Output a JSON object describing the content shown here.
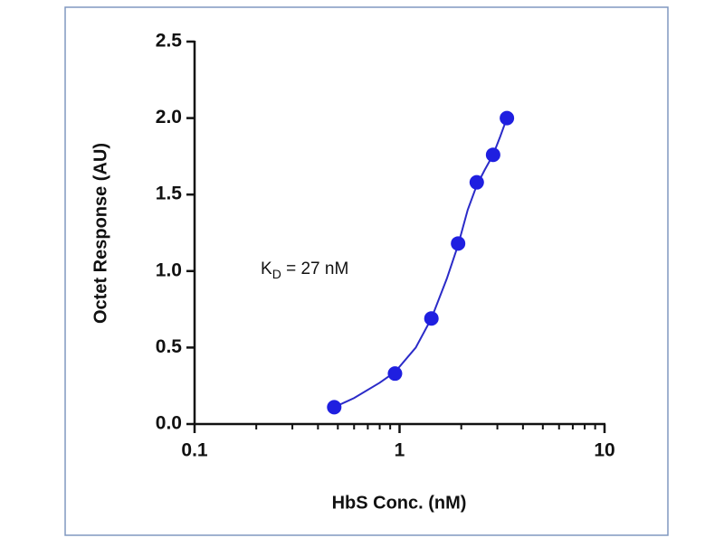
{
  "chart_data": {
    "type": "scatter",
    "xlabel": "HbS Conc. (nM)",
    "ylabel": "Octet Response (AU)",
    "annotation": {
      "main": "K",
      "sub": "D",
      "tail": " = 27 nM"
    },
    "xscale": "log",
    "xlim": [
      0.1,
      10
    ],
    "xticks": [
      0.1,
      1,
      10
    ],
    "xminorticks": [
      0.2,
      0.3,
      0.4,
      0.5,
      0.6,
      0.7,
      0.8,
      0.9,
      2,
      3,
      4,
      5,
      6,
      7,
      8,
      9
    ],
    "ylim": [
      0,
      2.5
    ],
    "yticks": [
      {
        "value": 0,
        "label": "0.0"
      },
      0.5,
      {
        "value": 1,
        "label": "1.0"
      },
      1.5,
      {
        "value": 2,
        "label": "2.0"
      },
      2.5
    ],
    "series": [
      {
        "style": "markers",
        "color": "#1f1fe0",
        "x": [
          0.48,
          0.95,
          1.43,
          1.93,
          2.38,
          2.86,
          3.34
        ],
        "values": [
          0.11,
          0.33,
          0.69,
          1.18,
          1.58,
          1.76,
          2.0
        ]
      },
      {
        "style": "line",
        "color": "#2b2bc8",
        "x": [
          0.48,
          0.6,
          0.8,
          0.95,
          1.2,
          1.43,
          1.7,
          1.93,
          2.15,
          2.38,
          2.6,
          2.86,
          3.1,
          3.34
        ],
        "values": [
          0.11,
          0.17,
          0.27,
          0.34,
          0.5,
          0.69,
          0.95,
          1.17,
          1.4,
          1.56,
          1.66,
          1.76,
          1.88,
          2.0
        ]
      }
    ]
  }
}
